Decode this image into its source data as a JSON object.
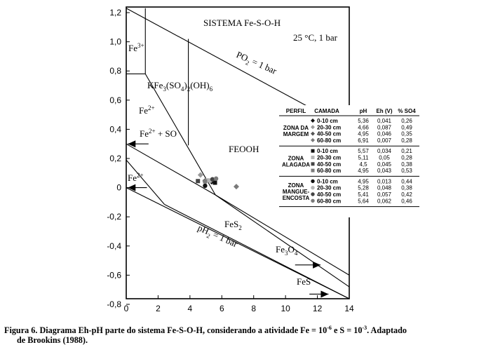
{
  "chart_data": {
    "type": "scatter",
    "xlim": [
      0,
      14
    ],
    "ylim": [
      -0.8,
      1.2
    ],
    "x_ticks": [
      "0",
      "2",
      "4",
      "6",
      "8",
      "10",
      "12",
      "14"
    ],
    "y_ticks": [
      "1,2",
      "1,0",
      "0,8",
      "0,6",
      "0,4",
      "0,2",
      "0",
      "-0,2",
      "-0,4",
      "-0,6",
      "-0,8"
    ],
    "grid": false,
    "lines": [
      {
        "x": [
          0,
          14
        ],
        "y": [
          1.23,
          0.403
        ]
      },
      {
        "x": [
          0,
          14
        ],
        "y": [
          0,
          -0.828
        ]
      },
      {
        "x": [
          0,
          5.6
        ],
        "y": [
          0.3,
          -0.05
        ]
      },
      {
        "x": [
          0,
          2.4
        ],
        "y": [
          0.19,
          -0.115
        ]
      },
      {
        "x": [
          2.4,
          14
        ],
        "y": [
          -0.115,
          -0.77
        ]
      },
      {
        "x": [
          5.6,
          14
        ],
        "y": [
          -0.05,
          -0.6
        ]
      },
      {
        "x": [
          5.6,
          14
        ],
        "y": [
          -0.05,
          -0.68
        ]
      },
      {
        "x": [
          1.2,
          5.6
        ],
        "y": [
          0.78,
          -0.05
        ]
      },
      {
        "x": [
          1.2,
          1.2
        ],
        "y": [
          1.23,
          0.78
        ]
      },
      {
        "x": [
          0,
          1.2
        ],
        "y": [
          0.78,
          0.78
        ]
      },
      {
        "x": [
          3.9,
          3.9
        ],
        "y": [
          1.02,
          0.29
        ]
      }
    ],
    "arrows": [
      {
        "x": [
          10.6,
          12.2
        ],
        "y": [
          -0.53,
          -0.53
        ]
      },
      {
        "x": [
          11.5,
          12.7
        ],
        "y": [
          -0.73,
          -0.73
        ]
      },
      {
        "x": [
          1.4,
          0.1
        ],
        "y": [
          0.3,
          0.3
        ]
      },
      {
        "x": [
          1.3,
          0.1
        ],
        "y": [
          0.0,
          0.0
        ]
      }
    ],
    "points": [
      {
        "x": 5.36,
        "y": 0.041,
        "group": "Zona da Margem",
        "layer": "0-10 cm",
        "color": "#111111",
        "shape": "diamond"
      },
      {
        "x": 4.66,
        "y": 0.087,
        "group": "Zona da Margem",
        "layer": "20-30 cm",
        "color": "#9a9a9a",
        "shape": "diamond"
      },
      {
        "x": 4.95,
        "y": 0.046,
        "group": "Zona da Margem",
        "layer": "40-50 cm",
        "color": "#555555",
        "shape": "diamond"
      },
      {
        "x": 6.91,
        "y": 0.007,
        "group": "Zona da Margem",
        "layer": "60-80 cm",
        "color": "#7a7a7a",
        "shape": "diamond"
      },
      {
        "x": 5.57,
        "y": 0.034,
        "group": "Zona Alagada",
        "layer": "0-10 cm",
        "color": "#111111",
        "shape": "square"
      },
      {
        "x": 5.11,
        "y": 0.05,
        "group": "Zona Alagada",
        "layer": "20-30 cm",
        "color": "#b5b5b5",
        "shape": "square"
      },
      {
        "x": 4.5,
        "y": 0.045,
        "group": "Zona Alagada",
        "layer": "40-50 cm",
        "color": "#444444",
        "shape": "square"
      },
      {
        "x": 4.95,
        "y": 0.043,
        "group": "Zona Alagada",
        "layer": "60-80 cm",
        "color": "#7a7a7a",
        "shape": "square"
      },
      {
        "x": 4.95,
        "y": 0.013,
        "group": "Zona Mangue-Encosta",
        "layer": "0-10 cm",
        "color": "#111111",
        "shape": "circle"
      },
      {
        "x": 5.28,
        "y": 0.048,
        "group": "Zona Mangue-Encosta",
        "layer": "20-30 cm",
        "color": "#b5b5b5",
        "shape": "circle"
      },
      {
        "x": 5.41,
        "y": 0.057,
        "group": "Zona Mangue-Encosta",
        "layer": "40-50 cm",
        "color": "#444444",
        "shape": "circle"
      },
      {
        "x": 5.64,
        "y": 0.062,
        "group": "Zona Mangue-Encosta",
        "layer": "60-80 cm",
        "color": "#7a7a7a",
        "shape": "circle"
      }
    ],
    "region_labels": {
      "system": "SISTEMA Fe-S-O-H",
      "conditions": "25 °C, 1 bar",
      "fe3": "Fe3+",
      "jarosite": "KFe3(SO4)2(OH)6",
      "fe2_upper": "Fe2+",
      "fe2_so": "Fe2+ + SO",
      "fe2_lower": "Fe2+",
      "feooh": "FEOOH",
      "fes2": "FeS2",
      "fe3o4": "Fe3O4",
      "fes": "FeS",
      "po2": "PO2 = 1 bar",
      "ph2": "pH2 = 1 bar"
    },
    "table": {
      "headers": [
        "PERFIL",
        "CAMADA",
        "pH",
        "Eh (V)",
        "% SO4"
      ],
      "groups": [
        {
          "name_lines": [
            "ZONA DA",
            "MARGEM"
          ],
          "rows": [
            [
              "0-10 cm",
              "5,36",
              "0,041",
              "0,26"
            ],
            [
              "20-30 cm",
              "4,66",
              "0,087",
              "0,49"
            ],
            [
              "40-50 cm",
              "4,95",
              "0,046",
              "0,35"
            ],
            [
              "60-80 cm",
              "6,91",
              "0,007",
              "0,28"
            ]
          ]
        },
        {
          "name_lines": [
            "ZONA",
            "ALAGADA"
          ],
          "rows": [
            [
              "0-10 cm",
              "5,57",
              "0,034",
              "0,21"
            ],
            [
              "20-30 cm",
              "5,11",
              "0,05",
              "0,28"
            ],
            [
              "40-50 cm",
              "4,5",
              "0,045",
              "0,38"
            ],
            [
              "60-80 cm",
              "4,95",
              "0,043",
              "0,53"
            ]
          ]
        },
        {
          "name_lines": [
            "ZONA",
            "MANGUE-",
            "ENCOSTA"
          ],
          "rows": [
            [
              "0-10 cm",
              "4,95",
              "0,013",
              "0,44"
            ],
            [
              "20-30 cm",
              "5,28",
              "0,048",
              "0,38"
            ],
            [
              "40-50 cm",
              "5,41",
              "0,057",
              "0,42"
            ],
            [
              "60-80 cm",
              "5,64",
              "0,062",
              "0,46"
            ]
          ]
        }
      ]
    }
  },
  "caption": {
    "line1_a": "Figura 6. Diagrama Eh-pH parte do sistema Fe-S-O-H, considerando a atividade Fe = 10",
    "line1_exp1": "-6",
    "line1_b": " e S = 10",
    "line1_exp2": "-3",
    "line1_c": ". Adaptado",
    "line2": "de Brookins (1988)."
  }
}
